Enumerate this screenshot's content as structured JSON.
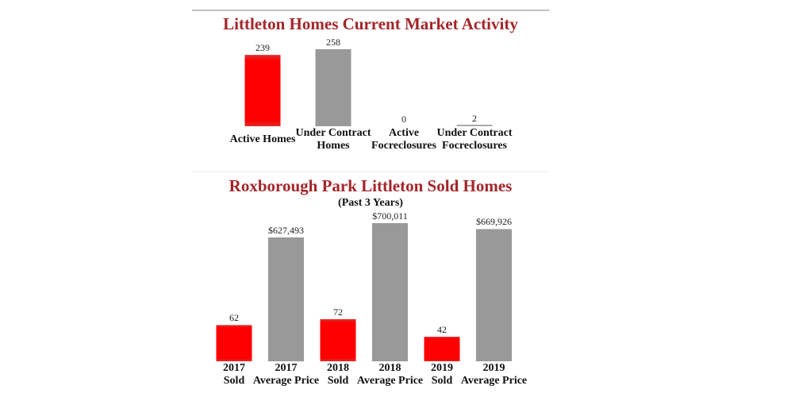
{
  "chart_data": [
    {
      "type": "bar",
      "title": "Littleton Homes Current Market Activity",
      "categories": [
        [
          "Active Homes"
        ],
        [
          "Under Contract",
          "Homes"
        ],
        [
          "Active",
          "Focreclosures"
        ],
        [
          "Under Contract",
          "Focreclosures"
        ]
      ],
      "values": [
        239,
        258,
        0,
        2
      ],
      "colors": [
        "#ff0000",
        "#999999",
        "#999999",
        "#999999"
      ],
      "value_axes": [
        "y",
        "y",
        "y",
        "y"
      ]
    },
    {
      "type": "bar",
      "title": "Roxborough Park Littleton Sold Homes",
      "subtitle": "(Past 3 Years)",
      "categories": [
        [
          "2017",
          "Sold"
        ],
        [
          "2017",
          "Average Price"
        ],
        [
          "2018",
          "Sold"
        ],
        [
          "2018",
          "Average Price"
        ],
        [
          "2019",
          "Sold"
        ],
        [
          "2019",
          "Average Price"
        ]
      ],
      "values": [
        62,
        627493,
        72,
        700011,
        42,
        669926
      ],
      "value_labels": [
        "62",
        "$627,493",
        "72",
        "$700,011",
        "42",
        "$669,926"
      ],
      "colors": [
        "#ff0000",
        "#999999",
        "#ff0000",
        "#999999",
        "#ff0000",
        "#999999"
      ],
      "value_axes": [
        "y",
        "y2",
        "y",
        "y2",
        "y",
        "y2"
      ]
    }
  ]
}
